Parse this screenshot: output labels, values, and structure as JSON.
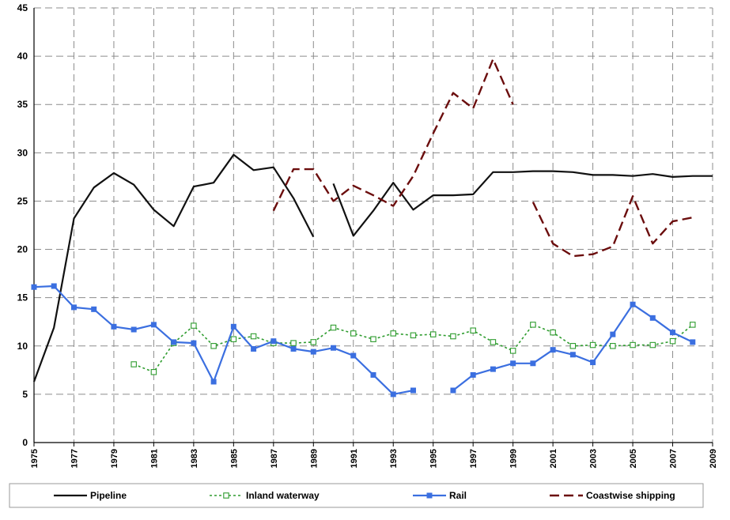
{
  "chart_data": {
    "type": "line",
    "title": "",
    "xlabel": "",
    "ylabel": "",
    "xlim": [
      1975,
      2009
    ],
    "ylim": [
      0,
      45
    ],
    "yticks": [
      0,
      5,
      10,
      15,
      20,
      25,
      30,
      35,
      40,
      45
    ],
    "xticks": [
      1975,
      1977,
      1979,
      1981,
      1983,
      1985,
      1987,
      1989,
      1991,
      1993,
      1995,
      1997,
      1999,
      2001,
      2003,
      2005,
      2007,
      2009
    ],
    "grid": true,
    "legend": "bottom",
    "series": [
      {
        "name": "Pipeline",
        "color": "#111111",
        "style": "solid",
        "marker": "none",
        "segments": [
          [
            [
              1975,
              6.3
            ],
            [
              1976,
              11.9
            ],
            [
              1977,
              23.2
            ],
            [
              1978,
              26.4
            ],
            [
              1979,
              27.9
            ],
            [
              1980,
              26.7
            ],
            [
              1981,
              24.1
            ],
            [
              1982,
              22.4
            ],
            [
              1983,
              26.5
            ],
            [
              1984,
              26.9
            ],
            [
              1985,
              29.8
            ],
            [
              1986,
              28.2
            ],
            [
              1987,
              28.5
            ],
            [
              1988,
              25.3
            ],
            [
              1989,
              21.3
            ]
          ],
          [
            [
              1990,
              26.8
            ],
            [
              1991,
              21.4
            ],
            [
              1992,
              24.0
            ],
            [
              1993,
              26.9
            ],
            [
              1994,
              24.1
            ],
            [
              1995,
              25.6
            ],
            [
              1996,
              25.6
            ],
            [
              1997,
              25.7
            ],
            [
              1998,
              28.0
            ],
            [
              1999,
              28.0
            ],
            [
              2000,
              28.1
            ],
            [
              2001,
              28.1
            ],
            [
              2002,
              28.0
            ],
            [
              2003,
              27.7
            ],
            [
              2004,
              27.7
            ],
            [
              2005,
              27.6
            ],
            [
              2006,
              27.8
            ],
            [
              2007,
              27.5
            ],
            [
              2008,
              27.6
            ],
            [
              2009,
              27.6
            ]
          ]
        ]
      },
      {
        "name": "Inland waterway",
        "color": "#2e9c2e",
        "style": "dotted",
        "marker": "hollow-square",
        "segments": [
          [
            [
              1980,
              8.1
            ],
            [
              1981,
              7.3
            ],
            [
              1982,
              10.3
            ],
            [
              1983,
              12.1
            ],
            [
              1984,
              10.0
            ],
            [
              1985,
              10.7
            ],
            [
              1986,
              11.0
            ],
            [
              1987,
              10.3
            ],
            [
              1988,
              10.3
            ],
            [
              1989,
              10.4
            ],
            [
              1990,
              11.9
            ],
            [
              1991,
              11.3
            ],
            [
              1992,
              10.7
            ],
            [
              1993,
              11.3
            ],
            [
              1994,
              11.1
            ],
            [
              1995,
              11.2
            ],
            [
              1996,
              11.0
            ],
            [
              1997,
              11.6
            ],
            [
              1998,
              10.4
            ],
            [
              1999,
              9.5
            ],
            [
              2000,
              12.2
            ],
            [
              2001,
              11.4
            ],
            [
              2002,
              10.0
            ],
            [
              2003,
              10.1
            ],
            [
              2004,
              10.0
            ],
            [
              2005,
              10.1
            ],
            [
              2006,
              10.1
            ],
            [
              2007,
              10.5
            ],
            [
              2008,
              12.2
            ]
          ]
        ]
      },
      {
        "name": "Rail",
        "color": "#3b6fe0",
        "style": "solid",
        "marker": "filled-square",
        "segments": [
          [
            [
              1975,
              16.1
            ],
            [
              1976,
              16.2
            ],
            [
              1977,
              14.0
            ],
            [
              1978,
              13.8
            ],
            [
              1979,
              12.0
            ],
            [
              1980,
              11.7
            ],
            [
              1981,
              12.2
            ],
            [
              1982,
              10.4
            ],
            [
              1983,
              10.3
            ],
            [
              1984,
              6.3
            ],
            [
              1985,
              12.0
            ],
            [
              1986,
              9.7
            ],
            [
              1987,
              10.5
            ],
            [
              1988,
              9.7
            ],
            [
              1989,
              9.4
            ],
            [
              1990,
              9.8
            ],
            [
              1991,
              9.0
            ],
            [
              1992,
              7.0
            ],
            [
              1993,
              5.0
            ],
            [
              1994,
              5.4
            ]
          ],
          [
            [
              1996,
              5.4
            ],
            [
              1997,
              7.0
            ],
            [
              1998,
              7.6
            ],
            [
              1999,
              8.2
            ],
            [
              2000,
              8.2
            ],
            [
              2001,
              9.6
            ],
            [
              2002,
              9.1
            ],
            [
              2003,
              8.3
            ],
            [
              2004,
              11.2
            ],
            [
              2005,
              14.3
            ],
            [
              2006,
              12.9
            ],
            [
              2007,
              11.4
            ],
            [
              2008,
              10.4
            ]
          ]
        ]
      },
      {
        "name": "Coastwise shipping",
        "color": "#6b0d0d",
        "style": "dashed",
        "marker": "none",
        "segments": [
          [
            [
              1987,
              24.0
            ],
            [
              1988,
              28.3
            ],
            [
              1989,
              28.3
            ],
            [
              1990,
              25.0
            ],
            [
              1991,
              26.6
            ],
            [
              1992,
              25.6
            ],
            [
              1993,
              24.5
            ],
            [
              1994,
              27.6
            ],
            [
              1995,
              32.0
            ],
            [
              1996,
              36.2
            ],
            [
              1997,
              34.6
            ],
            [
              1998,
              39.7
            ],
            [
              1999,
              35.0
            ]
          ],
          [
            [
              2000,
              24.9
            ],
            [
              2001,
              20.6
            ],
            [
              2002,
              19.3
            ],
            [
              2003,
              19.5
            ],
            [
              2004,
              20.3
            ],
            [
              2005,
              25.5
            ],
            [
              2006,
              20.6
            ],
            [
              2007,
              22.9
            ],
            [
              2008,
              23.3
            ]
          ]
        ]
      }
    ]
  }
}
